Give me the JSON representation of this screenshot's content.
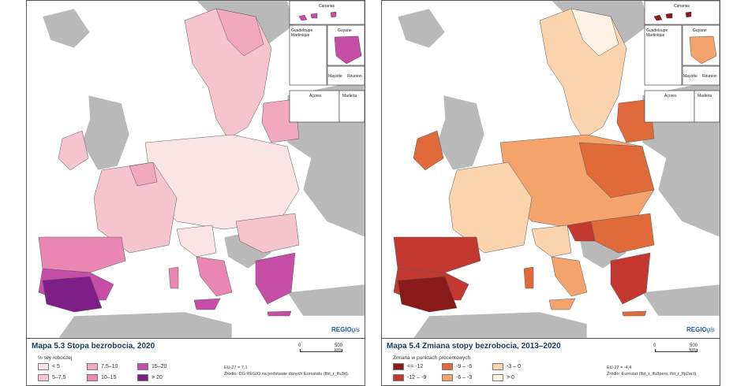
{
  "left": {
    "title": "Mapa 5.3 Stopa bezrobocia, 2020",
    "legend_subtitle": "% siły roboczej",
    "legend": [
      {
        "label": "< 5",
        "color": "#fbe4e6"
      },
      {
        "label": "5–7,5",
        "color": "#f5c4cf"
      },
      {
        "label": "7,5–10",
        "color": "#f2a9c0"
      },
      {
        "label": "10–15",
        "color": "#ea86b2"
      },
      {
        "label": "15–20",
        "color": "#c64ea6"
      },
      {
        "label": "> 20",
        "color": "#7e1f87"
      }
    ],
    "eu_note": "EU-27 = 7,1",
    "source": "Źródło: DG REGIO na podstawie danych Eurostatu (lfst_r_lfu3rt)."
  },
  "right": {
    "title": "Mapa 5.4 Zmiana stopy bezrobocia, 2013–2020",
    "legend_subtitle": "Zmiana w punktach procentowych",
    "legend": [
      {
        "label": "<= -12",
        "color": "#8a1b1b"
      },
      {
        "label": "-12 – -9",
        "color": "#c4392f"
      },
      {
        "label": "-9 – -6",
        "color": "#e06a3a"
      },
      {
        "label": "-6 – -3",
        "color": "#f4a36c"
      },
      {
        "label": "-3 – 0",
        "color": "#fbd3ad"
      },
      {
        "label": "> 0",
        "color": "#fff3e6"
      }
    ],
    "eu_note": "EU-27 = -4,4",
    "source": "Źródło: Eurostat (lfst_r_lfu3pers, lfst_r_lfp2act)."
  },
  "insets": {
    "canarias": "Canarias",
    "guadeloupe": "Guadeloupe",
    "martinique": "Martinique",
    "guyane": "Guyane",
    "mayotte": "Mayotte",
    "reunion": "Réunion",
    "acores": "Açores",
    "madeira": "Madeira"
  },
  "scale": {
    "start": "0",
    "end": "500 km"
  },
  "brand": {
    "name": "REGIO",
    "suffix": "gis"
  },
  "colors": {
    "sea": "#ffffff",
    "nonEU": "#b9b9b9",
    "border": "#5a5a5a"
  }
}
